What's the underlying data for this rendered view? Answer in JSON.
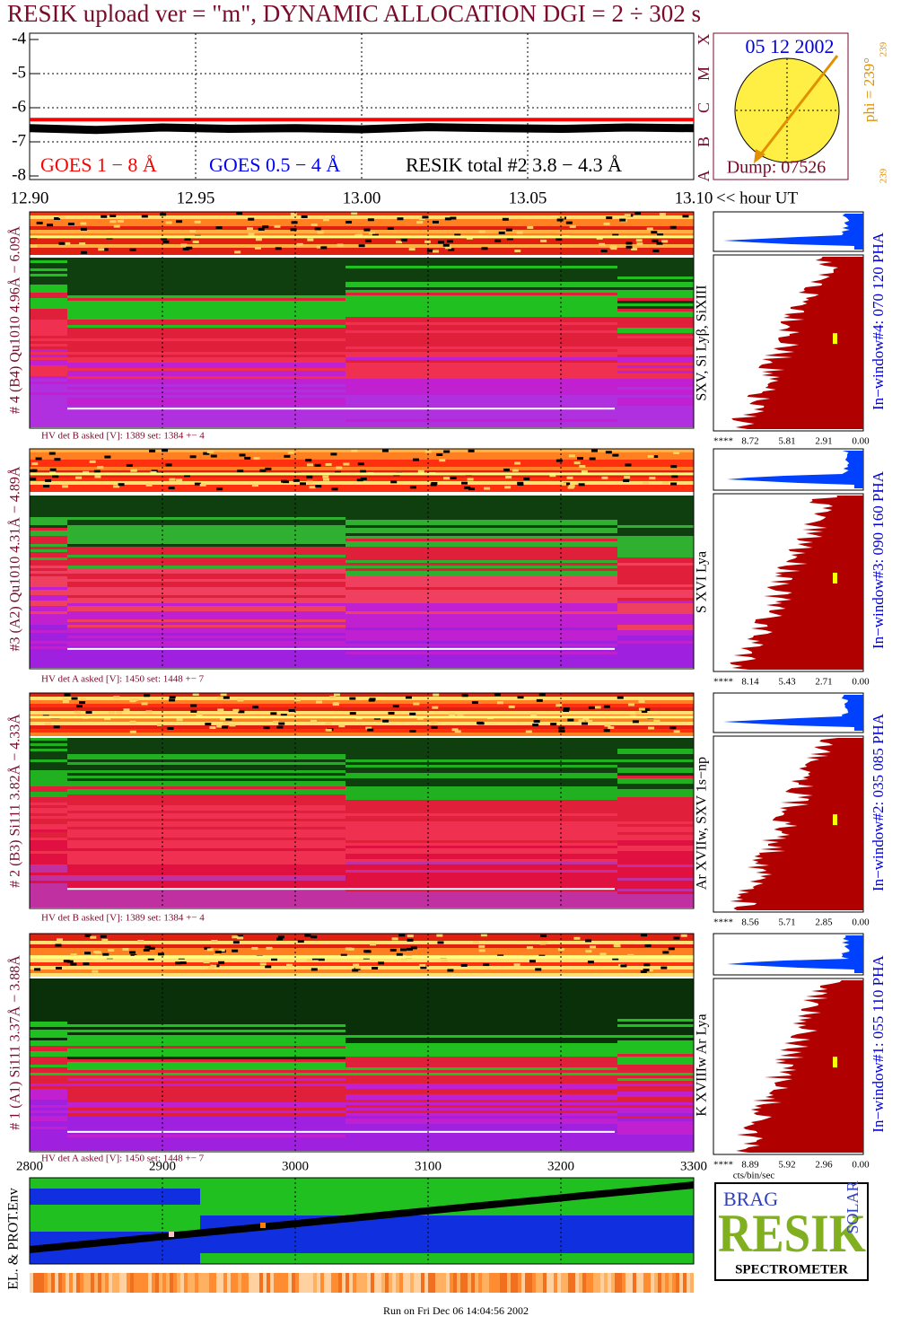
{
  "title": "RESIK upload ver = \"m\", DYNAMIC ALLOCATION  DGI =   2 ÷ 302 s",
  "chart_data": [
    {
      "type": "line",
      "x": [
        12.9,
        12.92,
        12.94,
        12.96,
        12.98,
        13.0,
        13.02,
        13.04,
        13.06,
        13.08,
        13.1
      ],
      "series": [
        {
          "name": "GOES 1 − 8 Å",
          "color": "#ff0000",
          "values": [
            -6.35,
            -6.35,
            -6.35,
            -6.35,
            -6.35,
            -6.35,
            -6.35,
            -6.35,
            -6.35,
            -6.35,
            -6.35
          ]
        },
        {
          "name": "GOES 0.5 − 4 Å",
          "color": "#0000ff",
          "values": [
            null,
            null,
            null,
            null,
            null,
            null,
            null,
            null,
            null,
            null,
            null
          ]
        },
        {
          "name": "RESIK total #2  3.8 − 4.3 Å",
          "color": "#000000",
          "values": [
            -6.6,
            -6.65,
            -6.58,
            -6.62,
            -6.6,
            -6.63,
            -6.57,
            -6.6,
            -6.62,
            -6.58,
            -6.6
          ]
        }
      ],
      "xlim": [
        12.9,
        13.1
      ],
      "xticks": [
        {
          "value": 12.9,
          "label": "12.90"
        },
        {
          "value": 12.95,
          "label": "12.95"
        },
        {
          "value": 13.0,
          "label": "13.00"
        },
        {
          "value": 13.05,
          "label": "13.05"
        },
        {
          "value": 13.1,
          "label": "13.10"
        }
      ],
      "x_label": "<< hour UT",
      "ylim": [
        -8,
        -4
      ],
      "yticks": [
        -8,
        -7,
        -6,
        -5,
        -4
      ],
      "class_labels": [
        "A",
        "B",
        "C",
        "M",
        "X"
      ],
      "grid": true
    },
    {
      "type": "spectrum",
      "xlim": [
        2800,
        3300
      ],
      "xticks": [
        2800,
        2900,
        3000,
        3100,
        3200,
        3300
      ],
      "y_label": "EL. & PROT.Env",
      "grid": true
    }
  ],
  "sun": {
    "date": "05 12 2002",
    "phi": "phi = 239°",
    "phi_small": "239",
    "corner": "239",
    "dump": "Dump: 07526"
  },
  "panels": [
    {
      "label": "# 4 (B4) Qu1010 4.96Å − 6.09Å",
      "lines": "SXV, Si Lyβ, SiXIII",
      "hv": "HV det B asked [V]:  1389 set:  1384 +−   4",
      "window": "In−window#4:  070 120 PHA",
      "pha_ticks": [
        "****",
        "8.72",
        "5.81",
        "2.91",
        "0.00"
      ]
    },
    {
      "label": "#3 (A2) Qu1010  4.31Å − 4.89Å",
      "lines": "S XVI Lya",
      "hv": "HV det A asked [V]:  1450 set:  1448 +−   7",
      "window": "In−window#3:  090 160 PHA",
      "pha_ticks": [
        "****",
        "8.14",
        "5.43",
        "2.71",
        "0.00"
      ]
    },
    {
      "label": "# 2 (B3) Si111  3.82Å − 4.33Å",
      "lines": "Ar XVIIw,  SXV 1s−np",
      "hv": "HV det B asked [V]:  1389 set:  1384 +−   4",
      "window": "In−window#2:  035 085 PHA",
      "pha_ticks": [
        "****",
        "8.56",
        "5.71",
        "2.85",
        "0.00"
      ]
    },
    {
      "label": "# 1 (A1) Si111  3.37Å − 3.88Å",
      "lines": "K XVIIIw  Ar Lya",
      "hv": "HV det A asked [V]:  1450 set:  1448 +−   7",
      "window": "In−window#1:  055 110 PHA",
      "pha_ticks": [
        "****",
        "8.89",
        "5.92",
        "2.96",
        "0.00"
      ]
    }
  ],
  "pha_unit": "cts/bin/sec",
  "logo": {
    "brag": "BRAG",
    "resik": "RESIK",
    "solar": "SOLAR",
    "name": "SPECTROMETER"
  },
  "footer": "Run on Fri Dec 06 14:04:56 2002"
}
